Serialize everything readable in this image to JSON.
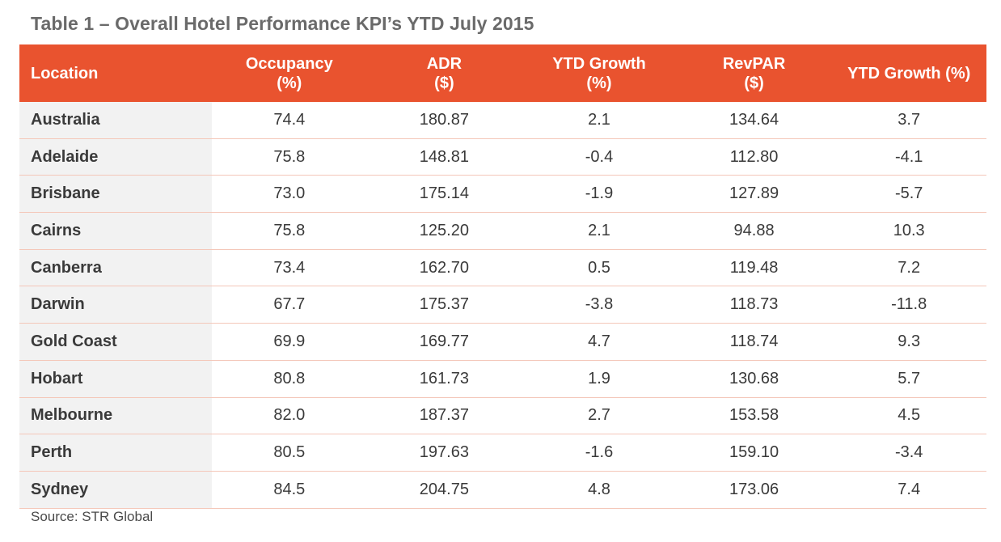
{
  "title": "Table 1 – Overall Hotel Performance KPI’s YTD July 2015",
  "source": "Source: STR Global",
  "colors": {
    "header_bg": "#e9532f",
    "header_text": "#ffffff",
    "location_col_bg": "#f2f2f2",
    "row_divider": "#f4c7b9"
  },
  "chart_data": {
    "type": "table",
    "title": "Table 1 – Overall Hotel Performance KPI’s YTD July 2015",
    "columns": [
      {
        "line1": "Location",
        "line2": ""
      },
      {
        "line1": "Occupancy",
        "line2": "(%)"
      },
      {
        "line1": "ADR",
        "line2": "($)"
      },
      {
        "line1": "YTD Growth",
        "line2": "(%)"
      },
      {
        "line1": "RevPAR",
        "line2": "($)"
      },
      {
        "line1": "YTD Growth (%)",
        "line2": ""
      }
    ],
    "rows": [
      [
        "Australia",
        "74.4",
        "180.87",
        "2.1",
        "134.64",
        "3.7"
      ],
      [
        "Adelaide",
        "75.8",
        "148.81",
        "-0.4",
        "112.80",
        "-4.1"
      ],
      [
        "Brisbane",
        "73.0",
        "175.14",
        "-1.9",
        "127.89",
        "-5.7"
      ],
      [
        "Cairns",
        "75.8",
        "125.20",
        "2.1",
        "94.88",
        "10.3"
      ],
      [
        "Canberra",
        "73.4",
        "162.70",
        "0.5",
        "119.48",
        "7.2"
      ],
      [
        "Darwin",
        "67.7",
        "175.37",
        "-3.8",
        "118.73",
        "-11.8"
      ],
      [
        "Gold Coast",
        "69.9",
        "169.77",
        "4.7",
        "118.74",
        "9.3"
      ],
      [
        "Hobart",
        "80.8",
        "161.73",
        "1.9",
        "130.68",
        "5.7"
      ],
      [
        "Melbourne",
        "82.0",
        "187.37",
        "2.7",
        "153.58",
        "4.5"
      ],
      [
        "Perth",
        "80.5",
        "197.63",
        "-1.6",
        "159.10",
        "-3.4"
      ],
      [
        "Sydney",
        "84.5",
        "204.75",
        "4.8",
        "173.06",
        "7.4"
      ]
    ]
  }
}
